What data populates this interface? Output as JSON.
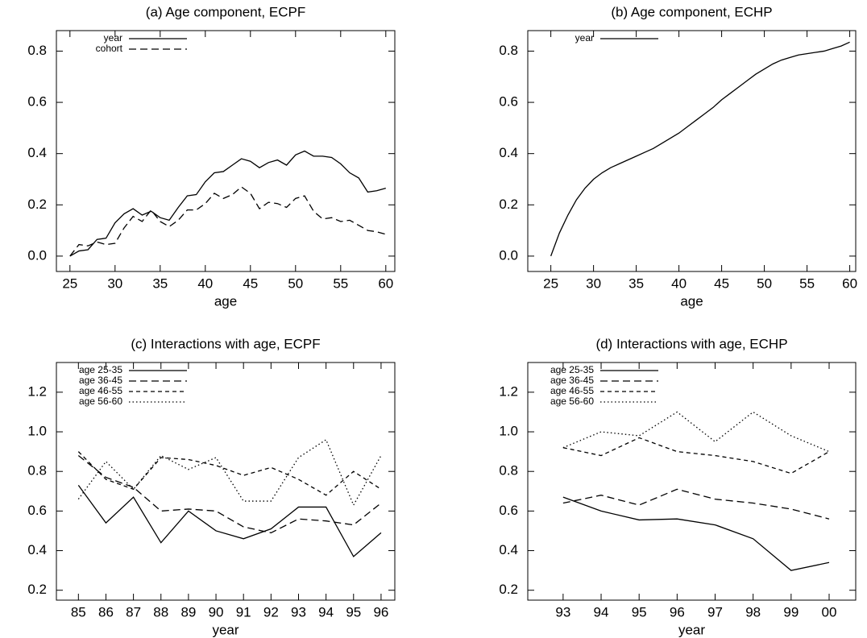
{
  "chart_data": [
    {
      "type": "line",
      "title": "(a) Age component, ECPF",
      "x_label": "age",
      "legend": "upper left",
      "x": [
        25,
        26,
        27,
        28,
        29,
        30,
        31,
        32,
        33,
        34,
        35,
        36,
        37,
        38,
        39,
        40,
        41,
        42,
        43,
        44,
        45,
        46,
        47,
        48,
        49,
        50,
        51,
        52,
        53,
        54,
        55,
        56,
        57,
        58,
        59,
        60
      ],
      "series": [
        {
          "name": "year",
          "color": "#000000",
          "line_style": "solid",
          "values": [
            0,
            0.02,
            0.025,
            0.065,
            0.07,
            0.13,
            0.165,
            0.185,
            0.16,
            0.175,
            0.15,
            0.14,
            0.19,
            0.235,
            0.24,
            0.29,
            0.325,
            0.33,
            0.355,
            0.38,
            0.37,
            0.345,
            0.365,
            0.375,
            0.355,
            0.395,
            0.41,
            0.39,
            0.39,
            0.385,
            0.36,
            0.325,
            0.305,
            0.25,
            0.255,
            0.265
          ]
        },
        {
          "name": "cohort",
          "color": "#000000",
          "line_style": "dashed",
          "values": [
            0,
            0.045,
            0.04,
            0.055,
            0.045,
            0.05,
            0.11,
            0.155,
            0.135,
            0.18,
            0.135,
            0.115,
            0.14,
            0.18,
            0.18,
            0.205,
            0.245,
            0.225,
            0.24,
            0.27,
            0.245,
            0.185,
            0.21,
            0.205,
            0.19,
            0.225,
            0.235,
            0.175,
            0.145,
            0.15,
            0.135,
            0.14,
            0.12,
            0.1,
            0.095,
            0.085
          ]
        }
      ],
      "xlim": [
        23.5,
        61
      ],
      "ylim": [
        -0.06,
        0.88
      ],
      "xticks": [
        25,
        30,
        35,
        40,
        45,
        50,
        55,
        60
      ],
      "yticks": [
        {
          "value": 0,
          "label": "0.0"
        },
        0.2,
        0.4,
        0.6,
        0.8
      ]
    },
    {
      "type": "line",
      "title": "(b) Age component, ECHP",
      "x_label": "age",
      "legend": "upper left",
      "x": [
        25,
        26,
        27,
        28,
        29,
        30,
        31,
        32,
        33,
        34,
        35,
        36,
        37,
        38,
        39,
        40,
        41,
        42,
        43,
        44,
        45,
        46,
        47,
        48,
        49,
        50,
        51,
        52,
        53,
        54,
        55,
        56,
        57,
        58,
        59,
        60
      ],
      "series": [
        {
          "name": "year",
          "color": "#000000",
          "line_style": "solid",
          "values": [
            0,
            0.09,
            0.16,
            0.22,
            0.265,
            0.3,
            0.325,
            0.345,
            0.36,
            0.375,
            0.39,
            0.405,
            0.42,
            0.44,
            0.46,
            0.48,
            0.505,
            0.53,
            0.555,
            0.58,
            0.61,
            0.635,
            0.66,
            0.685,
            0.71,
            0.73,
            0.75,
            0.765,
            0.775,
            0.785,
            0.79,
            0.795,
            0.8,
            0.81,
            0.82,
            0.835
          ]
        }
      ],
      "xlim": [
        22.3,
        60.7
      ],
      "ylim": [
        -0.06,
        0.88
      ],
      "xticks": [
        25,
        30,
        35,
        40,
        45,
        50,
        55,
        60
      ],
      "yticks": [
        {
          "value": 0,
          "label": "0.0"
        },
        0.2,
        0.4,
        0.6,
        0.8
      ]
    },
    {
      "type": "line",
      "title": "(c) Interactions with age, ECPF",
      "x_label": "year",
      "legend": "upper left",
      "x": [
        85,
        86,
        87,
        88,
        89,
        90,
        91,
        92,
        93,
        94,
        95,
        96
      ],
      "series": [
        {
          "name": "age 25-35",
          "color": "#000000",
          "line_style": "solid",
          "values": [
            0.73,
            0.54,
            0.67,
            0.44,
            0.6,
            0.5,
            0.46,
            0.51,
            0.62,
            0.62,
            0.37,
            0.49
          ]
        },
        {
          "name": "age 36-45",
          "color": "#000000",
          "line_style": "dashed",
          "values": [
            0.88,
            0.77,
            0.72,
            0.6,
            0.61,
            0.6,
            0.52,
            0.49,
            0.56,
            0.55,
            0.53,
            0.64
          ]
        },
        {
          "name": "age 46-55",
          "color": "#000000",
          "line_style": "short-dashed",
          "values": [
            0.9,
            0.76,
            0.71,
            0.87,
            0.86,
            0.83,
            0.78,
            0.82,
            0.76,
            0.68,
            0.8,
            0.71
          ]
        },
        {
          "name": "age 56-60",
          "color": "#000000",
          "line_style": "dotted",
          "values": [
            0.66,
            0.85,
            0.71,
            0.88,
            0.81,
            0.87,
            0.65,
            0.65,
            0.87,
            0.96,
            0.63,
            0.88
          ]
        }
      ],
      "xlim": [
        84.2,
        96.5
      ],
      "ylim": [
        0.15,
        1.35
      ],
      "xticks": [
        85,
        86,
        87,
        88,
        89,
        90,
        91,
        92,
        93,
        94,
        95,
        96
      ],
      "yticks": [
        0.2,
        0.4,
        0.6,
        0.8,
        {
          "value": 1,
          "label": "1.0"
        },
        1.2
      ]
    },
    {
      "type": "line",
      "title": "(d) Interactions with age, ECHP",
      "x_label": "year",
      "legend": "upper left",
      "x": [
        93,
        94,
        95,
        96,
        97,
        98,
        99,
        100
      ],
      "series": [
        {
          "name": "age 25-35",
          "color": "#000000",
          "line_style": "solid",
          "values": [
            0.67,
            0.6,
            0.555,
            0.56,
            0.53,
            0.46,
            0.3,
            0.34
          ]
        },
        {
          "name": "age 36-45",
          "color": "#000000",
          "line_style": "dashed",
          "values": [
            0.64,
            0.68,
            0.63,
            0.71,
            0.66,
            0.64,
            0.61,
            0.56
          ]
        },
        {
          "name": "age 46-55",
          "color": "#000000",
          "line_style": "short-dashed",
          "values": [
            0.92,
            0.88,
            0.97,
            0.9,
            0.88,
            0.85,
            0.79,
            0.9
          ]
        },
        {
          "name": "age 56-60",
          "color": "#000000",
          "line_style": "dotted",
          "values": [
            0.92,
            1.0,
            0.98,
            1.1,
            0.95,
            1.1,
            0.98,
            0.9
          ]
        }
      ],
      "xlim": [
        92.07,
        100.7
      ],
      "ylim": [
        0.15,
        1.35
      ],
      "xticks": [
        93,
        94,
        95,
        96,
        97,
        98,
        99,
        {
          "value": 100,
          "label": "00"
        }
      ],
      "yticks": [
        0.2,
        0.4,
        0.6,
        0.8,
        {
          "value": 1,
          "label": "1.0"
        },
        1.2
      ]
    }
  ]
}
